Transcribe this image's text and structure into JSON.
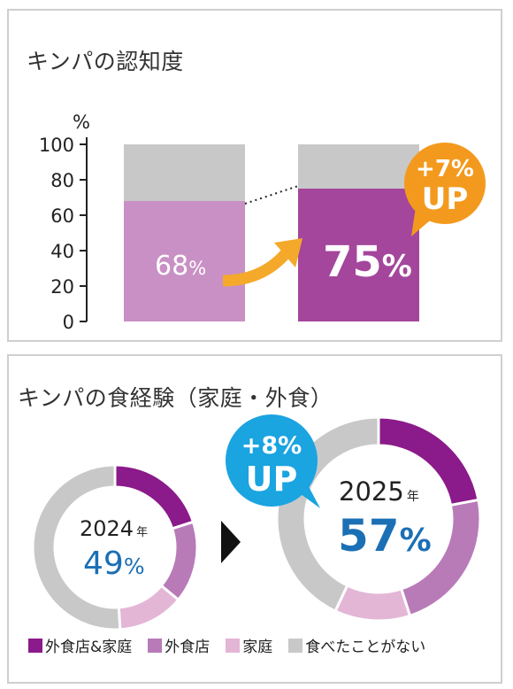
{
  "colors": {
    "both": "#8b1a8a",
    "eating_out": "#b87bb8",
    "home": "#e3b6d6",
    "never": "#c8c8c8",
    "bar_prev": "#c890c4",
    "bar_curr": "#a4469c",
    "bar_rest": "#c8c8c8",
    "arrow": "#f5a92a",
    "badge_orange": "#f39a1e",
    "badge_blue": "#1aa4e0",
    "pct_blue": "#1b6fb5"
  },
  "chart_data": [
    {
      "type": "bar",
      "title": "キンパの認知度",
      "ylabel": "%",
      "ylim": [
        0,
        100
      ],
      "yticks": [
        0,
        20,
        40,
        60,
        80,
        100
      ],
      "series": [
        {
          "values": [
            68,
            75
          ]
        }
      ],
      "data_labels": [
        "68%",
        "75%"
      ],
      "annotation": "+7% UP"
    },
    {
      "type": "pie",
      "title": "キンパの食経験（家庭・外食）",
      "categories": [
        "外食店&家庭",
        "外食店",
        "家庭",
        "食べたことがない"
      ],
      "series": [
        {
          "name": "2024年",
          "values": [
            20,
            16,
            13,
            51
          ]
        },
        {
          "name": "2025年",
          "values": [
            22,
            23,
            12,
            43
          ]
        }
      ],
      "center_labels": [
        "49%",
        "57%"
      ],
      "annotation": "+8% UP"
    }
  ],
  "panel1": {
    "title": "キンパの認知度",
    "yunit": "%",
    "ticks": [
      "0",
      "20",
      "40",
      "60",
      "80",
      "100"
    ],
    "label_prev_num": "68",
    "label_curr_num": "75",
    "pct": "%",
    "badge_line1": "+7%",
    "badge_line2": "UP"
  },
  "panel2": {
    "title": "キンパの食経験（家庭・外食）",
    "year_2024": "2024",
    "year_2025": "2025",
    "nen": "年",
    "pct_2024_num": "49",
    "pct_2025_num": "57",
    "pct": "%",
    "badge_line1": "+8%",
    "badge_line2": "UP",
    "legend": [
      "外食店&家庭",
      "外食店",
      "家庭",
      "食べたことがない"
    ]
  }
}
